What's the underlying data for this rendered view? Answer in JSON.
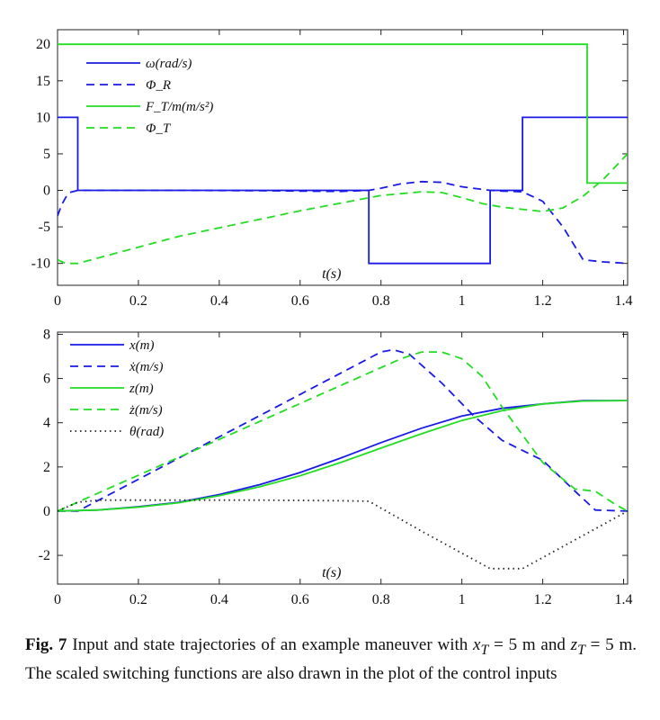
{
  "chart_data": [
    {
      "type": "line",
      "title": "",
      "xlabel": "t(s)",
      "ylabel": "",
      "xlim": [
        0,
        1.41
      ],
      "ylim": [
        -13,
        22
      ],
      "xticks": [
        0,
        0.2,
        0.4,
        0.6,
        0.8,
        1,
        1.2,
        1.4
      ],
      "yticks": [
        -10,
        -5,
        0,
        5,
        10,
        15,
        20
      ],
      "xtick_labels": [
        "0",
        "0.2",
        "0.4",
        "0.6",
        "0.8",
        "1",
        "1.2",
        "1.4"
      ],
      "ytick_labels": [
        "-10",
        "-5",
        "0",
        "5",
        "10",
        "15",
        "20"
      ],
      "grid": false,
      "legend_position": "top-left",
      "series": [
        {
          "name": "ω(rad/s)",
          "color": "#1a1ae6",
          "dash": "solid",
          "x": [
            0,
            0.05,
            0.05,
            0.77,
            0.77,
            1.07,
            1.07,
            1.15,
            1.15,
            1.41
          ],
          "y": [
            10,
            10,
            0,
            0,
            -10,
            -10,
            0,
            0,
            10,
            10
          ]
        },
        {
          "name": "Φ_R",
          "color": "#1a1ae6",
          "dash": "dashed",
          "x": [
            0,
            0.01,
            0.02,
            0.03,
            0.05,
            0.1,
            0.3,
            0.5,
            0.7,
            0.77,
            0.8,
            0.85,
            0.9,
            0.95,
            1.0,
            1.07,
            1.1,
            1.15,
            1.2,
            1.25,
            1.3,
            1.35,
            1.41
          ],
          "y": [
            -3.5,
            -2,
            -1,
            -0.3,
            0,
            0,
            0,
            -0.05,
            -0.15,
            0,
            0.3,
            0.9,
            1.2,
            1.1,
            0.5,
            0,
            -0.1,
            -0.2,
            -1.5,
            -5,
            -9.5,
            -9.8,
            -10
          ]
        },
        {
          "name": "F_T/m(m/s²)",
          "color": "#22dd22",
          "dash": "solid",
          "x": [
            0,
            1.31,
            1.31,
            1.41
          ],
          "y": [
            20,
            20,
            1,
            1
          ]
        },
        {
          "name": "Φ_T",
          "color": "#22dd22",
          "dash": "dashed",
          "x": [
            0,
            0.02,
            0.05,
            0.3,
            0.6,
            0.8,
            0.9,
            0.95,
            1.0,
            1.05,
            1.1,
            1.15,
            1.2,
            1.25,
            1.3,
            1.35,
            1.41
          ],
          "y": [
            -9.5,
            -10,
            -10,
            -6.3,
            -2.8,
            -0.7,
            -0.2,
            -0.3,
            -1,
            -1.8,
            -2.3,
            -2.6,
            -2.9,
            -2.4,
            -0.8,
            1.5,
            5
          ]
        }
      ]
    },
    {
      "type": "line",
      "title": "",
      "xlabel": "t(s)",
      "ylabel": "",
      "xlim": [
        0,
        1.41
      ],
      "ylim": [
        -3.3,
        8.1
      ],
      "xticks": [
        0,
        0.2,
        0.4,
        0.6,
        0.8,
        1,
        1.2,
        1.4
      ],
      "yticks": [
        -2,
        0,
        2,
        4,
        6,
        8
      ],
      "xtick_labels": [
        "0",
        "0.2",
        "0.4",
        "0.6",
        "0.8",
        "1",
        "1.2",
        "1.4"
      ],
      "ytick_labels": [
        "-2",
        "0",
        "2",
        "4",
        "6",
        "8"
      ],
      "grid": false,
      "legend_position": "top-left",
      "series": [
        {
          "name": "x(m)",
          "color": "#1a1ae6",
          "dash": "solid",
          "x": [
            0,
            0.1,
            0.2,
            0.3,
            0.4,
            0.5,
            0.6,
            0.7,
            0.8,
            0.9,
            1.0,
            1.1,
            1.2,
            1.3,
            1.41
          ],
          "y": [
            0,
            0.05,
            0.2,
            0.4,
            0.75,
            1.2,
            1.75,
            2.4,
            3.1,
            3.75,
            4.3,
            4.65,
            4.85,
            5.0,
            5.0
          ]
        },
        {
          "name": "ẋ(m/s)",
          "color": "#1a1ae6",
          "dash": "dashed",
          "x": [
            0,
            0.05,
            0.8,
            0.83,
            0.87,
            0.95,
            1.03,
            1.1,
            1.2,
            1.28,
            1.33,
            1.41
          ],
          "y": [
            0,
            0,
            7.2,
            7.3,
            7.1,
            5.8,
            4.3,
            3.2,
            2.3,
            0.9,
            0.05,
            0
          ]
        },
        {
          "name": "z(m)",
          "color": "#22dd22",
          "dash": "solid",
          "x": [
            0,
            0.1,
            0.2,
            0.3,
            0.4,
            0.5,
            0.6,
            0.7,
            0.8,
            0.9,
            1.0,
            1.1,
            1.2,
            1.3,
            1.41
          ],
          "y": [
            0,
            0.05,
            0.18,
            0.38,
            0.7,
            1.1,
            1.6,
            2.2,
            2.85,
            3.5,
            4.1,
            4.55,
            4.85,
            4.98,
            5.0
          ]
        },
        {
          "name": "ż(m/s)",
          "color": "#22dd22",
          "dash": "dashed",
          "x": [
            0,
            0.85,
            0.9,
            0.95,
            1.0,
            1.05,
            1.1,
            1.2,
            1.28,
            1.33,
            1.38,
            1.41
          ],
          "y": [
            0,
            6.9,
            7.2,
            7.2,
            6.9,
            6.1,
            4.7,
            2.2,
            1.0,
            0.9,
            0.3,
            0
          ]
        },
        {
          "name": "θ(rad)",
          "color": "#222222",
          "dash": "dotted",
          "x": [
            0,
            0.05,
            0.1,
            0.3,
            0.5,
            0.7,
            0.77,
            0.9,
            1.07,
            1.15,
            1.41
          ],
          "y": [
            0,
            0.4,
            0.5,
            0.5,
            0.5,
            0.47,
            0.45,
            -0.9,
            -2.6,
            -2.6,
            0
          ]
        }
      ]
    }
  ],
  "caption": {
    "label": "Fig. 7",
    "text_part1": "Input and state trajectories of an example maneuver with ",
    "x_sym": "x",
    "x_sub": "T",
    "x_val": " = 5 m and ",
    "z_sym": "z",
    "z_sub": "T",
    "z_val": " = 5 m. The scaled switching functions are also drawn in the plot of the control inputs"
  }
}
